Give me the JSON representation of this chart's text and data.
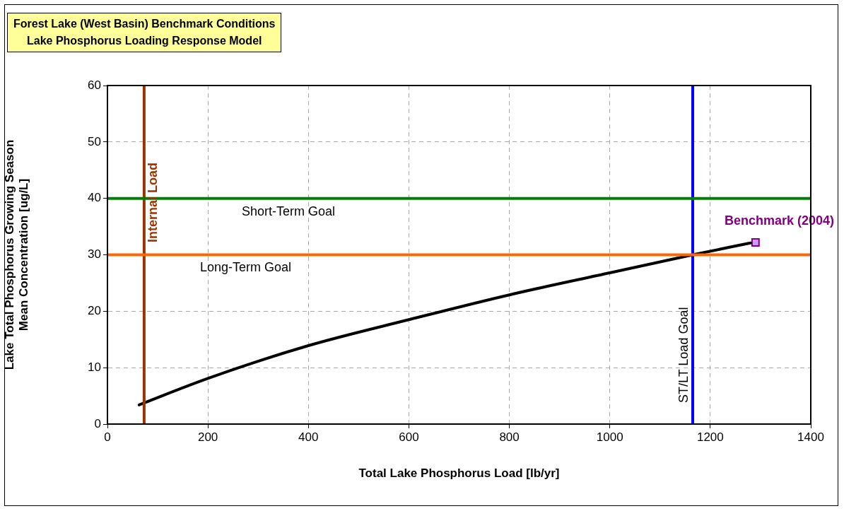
{
  "chart_data": {
    "type": "line",
    "title": "Forest Lake (West Basin) Benchmark Conditions",
    "subtitle": "Lake Phosphorus Loading Response Model",
    "xlabel": "Total Lake Phosphorus Load [lb/yr]",
    "ylabel": "Lake Total Phosphorus Growing Season\nMean Concentration [ug/L]",
    "xlim": [
      0,
      1400
    ],
    "xticks": [
      0,
      200,
      400,
      600,
      800,
      1000,
      1200,
      1400
    ],
    "ylim": [
      0,
      60
    ],
    "yticks": [
      0,
      10,
      20,
      30,
      40,
      50,
      60
    ],
    "grid": true,
    "legend": false,
    "series": [
      {
        "color": "#000000",
        "marker": "none",
        "line_style": "solid",
        "x": [
          63,
          200,
          400,
          600,
          800,
          1000,
          1165,
          1280
        ],
        "values": [
          3.4,
          8.1,
          13.9,
          18.5,
          22.9,
          26.8,
          30,
          32.1
        ]
      },
      {
        "type": "scatter",
        "name": "Benchmark (2004)",
        "color": "#cc99ff",
        "marker": "square",
        "x": [
          1290
        ],
        "values": [
          32.2
        ]
      }
    ],
    "ref_lines": [
      {
        "axis": "x",
        "value": 73,
        "label": "Internal Load",
        "color": "#993300"
      },
      {
        "axis": "x",
        "value": 1165,
        "label": "ST/LT Load Goal",
        "color": "#0000ff"
      },
      {
        "axis": "y",
        "value": 40,
        "label": "Short-Term Goal",
        "color": "#008000"
      },
      {
        "axis": "y",
        "value": 30,
        "label": "Long-Term Goal",
        "color": "#ff6600"
      }
    ]
  }
}
